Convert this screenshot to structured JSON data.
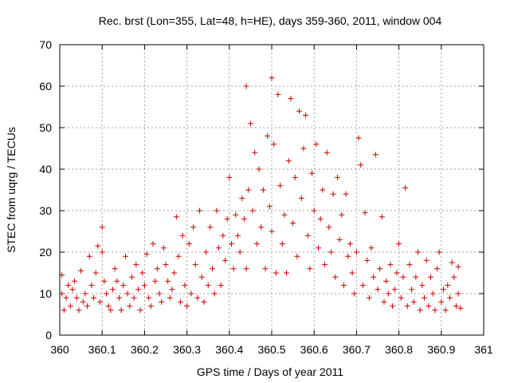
{
  "chart_data": {
    "type": "scatter",
    "title": "Rec. brst (Lon=355, Lat=48, h=HE), days 359-360, 2011, window 004",
    "xlabel": "GPS time / Days of year 2011",
    "ylabel": "STEC from uqrg / TECUs",
    "xlim": [
      360,
      361
    ],
    "ylim": [
      0,
      70
    ],
    "xticks": [
      "360",
      "360.1",
      "360.2",
      "360.3",
      "360.4",
      "360.5",
      "360.6",
      "360.7",
      "360.8",
      "360.9",
      "361"
    ],
    "yticks": [
      "0",
      "10",
      "20",
      "30",
      "40",
      "50",
      "60",
      "70"
    ],
    "grid": true,
    "marker": "plus",
    "color": "#cc0000",
    "series": [
      {
        "points": [
          [
            360.005,
            14.5
          ],
          [
            360.005,
            10
          ],
          [
            360.01,
            6
          ],
          [
            360.015,
            9
          ],
          [
            360.02,
            12
          ],
          [
            360.025,
            7
          ],
          [
            360.03,
            11
          ],
          [
            360.035,
            13
          ],
          [
            360.04,
            9
          ],
          [
            360.045,
            6
          ],
          [
            360.05,
            15.5
          ],
          [
            360.055,
            8
          ],
          [
            360.06,
            10
          ],
          [
            360.065,
            7
          ],
          [
            360.07,
            19
          ],
          [
            360.075,
            12
          ],
          [
            360.08,
            9
          ],
          [
            360.085,
            15
          ],
          [
            360.09,
            21.5
          ],
          [
            360.095,
            8
          ],
          [
            360.1,
            26
          ],
          [
            360.1,
            20
          ],
          [
            360.105,
            13
          ],
          [
            360.11,
            10
          ],
          [
            360.115,
            7
          ],
          [
            360.12,
            6
          ],
          [
            360.125,
            11
          ],
          [
            360.13,
            16
          ],
          [
            360.135,
            13
          ],
          [
            360.14,
            9
          ],
          [
            360.145,
            6
          ],
          [
            360.15,
            12
          ],
          [
            360.155,
            19
          ],
          [
            360.16,
            10
          ],
          [
            360.165,
            7
          ],
          [
            360.17,
            14
          ],
          [
            360.175,
            9
          ],
          [
            360.18,
            17
          ],
          [
            360.185,
            11
          ],
          [
            360.19,
            6
          ],
          [
            360.195,
            15
          ],
          [
            360.2,
            12
          ],
          [
            360.205,
            19.5
          ],
          [
            360.21,
            9
          ],
          [
            360.215,
            7
          ],
          [
            360.22,
            22
          ],
          [
            360.225,
            13
          ],
          [
            360.23,
            16
          ],
          [
            360.235,
            10
          ],
          [
            360.24,
            8
          ],
          [
            360.245,
            21
          ],
          [
            360.25,
            17
          ],
          [
            360.255,
            13
          ],
          [
            360.26,
            9
          ],
          [
            360.265,
            11
          ],
          [
            360.27,
            15
          ],
          [
            360.275,
            28.5
          ],
          [
            360.28,
            19
          ],
          [
            360.285,
            8
          ],
          [
            360.29,
            24
          ],
          [
            360.295,
            12
          ],
          [
            360.3,
            7
          ],
          [
            360.305,
            22
          ],
          [
            360.31,
            10
          ],
          [
            360.315,
            26
          ],
          [
            360.32,
            17
          ],
          [
            360.325,
            9
          ],
          [
            360.33,
            30
          ],
          [
            360.335,
            14
          ],
          [
            360.34,
            8
          ],
          [
            360.345,
            20
          ],
          [
            360.35,
            12
          ],
          [
            360.355,
            26
          ],
          [
            360.36,
            16
          ],
          [
            360.365,
            10
          ],
          [
            360.37,
            30
          ],
          [
            360.375,
            21
          ],
          [
            360.38,
            12
          ],
          [
            360.385,
            24
          ],
          [
            360.39,
            18
          ],
          [
            360.395,
            28
          ],
          [
            360.4,
            38
          ],
          [
            360.405,
            22
          ],
          [
            360.41,
            16
          ],
          [
            360.415,
            29
          ],
          [
            360.42,
            24
          ],
          [
            360.425,
            20
          ],
          [
            360.43,
            33
          ],
          [
            360.435,
            28
          ],
          [
            360.44,
            60
          ],
          [
            360.44,
            16
          ],
          [
            360.445,
            35
          ],
          [
            360.45,
            51
          ],
          [
            360.455,
            30
          ],
          [
            360.46,
            44
          ],
          [
            360.465,
            22
          ],
          [
            360.47,
            40
          ],
          [
            360.475,
            26
          ],
          [
            360.48,
            35
          ],
          [
            360.485,
            16
          ],
          [
            360.49,
            48
          ],
          [
            360.495,
            31
          ],
          [
            360.5,
            62
          ],
          [
            360.5,
            25
          ],
          [
            360.505,
            46
          ],
          [
            360.51,
            15
          ],
          [
            360.515,
            58
          ],
          [
            360.52,
            36
          ],
          [
            360.525,
            22
          ],
          [
            360.53,
            29
          ],
          [
            360.535,
            15
          ],
          [
            360.54,
            42
          ],
          [
            360.545,
            57
          ],
          [
            360.55,
            27
          ],
          [
            360.555,
            38
          ],
          [
            360.56,
            19
          ],
          [
            360.565,
            54
          ],
          [
            360.57,
            33
          ],
          [
            360.575,
            45
          ],
          [
            360.58,
            53
          ],
          [
            360.585,
            24
          ],
          [
            360.59,
            16
          ],
          [
            360.595,
            39
          ],
          [
            360.6,
            30
          ],
          [
            360.605,
            46
          ],
          [
            360.61,
            21
          ],
          [
            360.615,
            28
          ],
          [
            360.62,
            35
          ],
          [
            360.625,
            17
          ],
          [
            360.63,
            44
          ],
          [
            360.635,
            26
          ],
          [
            360.64,
            20
          ],
          [
            360.645,
            34
          ],
          [
            360.65,
            14
          ],
          [
            360.655,
            38
          ],
          [
            360.66,
            23
          ],
          [
            360.665,
            29
          ],
          [
            360.67,
            12
          ],
          [
            360.675,
            34
          ],
          [
            360.68,
            19
          ],
          [
            360.685,
            22
          ],
          [
            360.69,
            15
          ],
          [
            360.695,
            10
          ],
          [
            360.7,
            20
          ],
          [
            360.705,
            47.5
          ],
          [
            360.71,
            41
          ],
          [
            360.715,
            12
          ],
          [
            360.72,
            29.5
          ],
          [
            360.725,
            18
          ],
          [
            360.73,
            9
          ],
          [
            360.735,
            21
          ],
          [
            360.74,
            14
          ],
          [
            360.745,
            43.5
          ],
          [
            360.75,
            11
          ],
          [
            360.755,
            16
          ],
          [
            360.76,
            28.5
          ],
          [
            360.765,
            8
          ],
          [
            360.77,
            13
          ],
          [
            360.775,
            10
          ],
          [
            360.78,
            17
          ],
          [
            360.785,
            7
          ],
          [
            360.79,
            11
          ],
          [
            360.795,
            15
          ],
          [
            360.8,
            22
          ],
          [
            360.805,
            9
          ],
          [
            360.81,
            14
          ],
          [
            360.815,
            35.5
          ],
          [
            360.82,
            7
          ],
          [
            360.825,
            17
          ],
          [
            360.83,
            11
          ],
          [
            360.835,
            8
          ],
          [
            360.84,
            14
          ],
          [
            360.845,
            20
          ],
          [
            360.85,
            6
          ],
          [
            360.855,
            12
          ],
          [
            360.86,
            9
          ],
          [
            360.865,
            18
          ],
          [
            360.87,
            7
          ],
          [
            360.875,
            14
          ],
          [
            360.88,
            10
          ],
          [
            360.885,
            6
          ],
          [
            360.89,
            16
          ],
          [
            360.895,
            20
          ],
          [
            360.9,
            8
          ],
          [
            360.905,
            11
          ],
          [
            360.91,
            6
          ],
          [
            360.915,
            12
          ],
          [
            360.92,
            9
          ],
          [
            360.925,
            17.5
          ],
          [
            360.93,
            14
          ],
          [
            360.935,
            7
          ],
          [
            360.94,
            10
          ],
          [
            360.94,
            16.5
          ],
          [
            360.945,
            6.5
          ]
        ]
      }
    ]
  }
}
